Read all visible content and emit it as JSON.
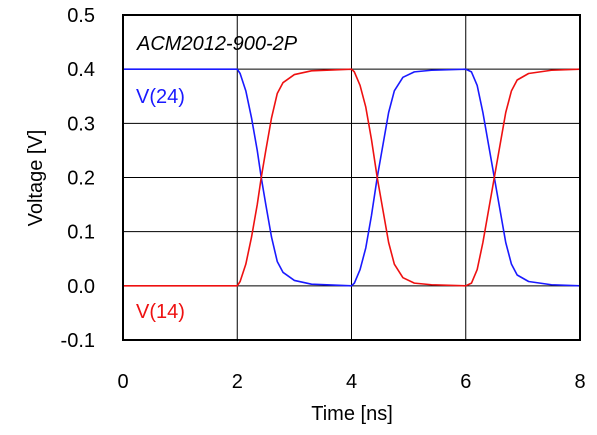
{
  "chart_data": {
    "type": "line",
    "title": "ACM2012-900-2P",
    "xlabel": "Time [ns]",
    "ylabel": "Voltage [V]",
    "xlim": [
      0,
      8
    ],
    "ylim": [
      -0.1,
      0.5
    ],
    "x_ticks": [
      "0",
      "2",
      "4",
      "6",
      "8"
    ],
    "y_ticks": [
      "-0.1",
      "0.0",
      "0.1",
      "0.2",
      "0.3",
      "0.4",
      "0.5"
    ],
    "grid": true,
    "series": [
      {
        "name": "V(24)",
        "color": "#1a1aff",
        "x": [
          0,
          2.0,
          2.05,
          2.15,
          2.25,
          2.35,
          2.42,
          2.5,
          2.6,
          2.7,
          2.8,
          3.0,
          3.3,
          4.0,
          4.05,
          4.15,
          4.25,
          4.35,
          4.45,
          4.55,
          4.65,
          4.75,
          4.9,
          5.1,
          5.4,
          6.0,
          6.1,
          6.2,
          6.3,
          6.4,
          6.5,
          6.6,
          6.7,
          6.8,
          6.9,
          7.1,
          7.5,
          8.0
        ],
        "y": [
          0.4,
          0.4,
          0.392,
          0.36,
          0.31,
          0.25,
          0.2,
          0.15,
          0.09,
          0.045,
          0.025,
          0.01,
          0.003,
          0.0,
          0.005,
          0.03,
          0.07,
          0.13,
          0.2,
          0.26,
          0.32,
          0.36,
          0.385,
          0.395,
          0.398,
          0.4,
          0.395,
          0.37,
          0.32,
          0.26,
          0.2,
          0.14,
          0.08,
          0.04,
          0.02,
          0.008,
          0.002,
          0.0
        ]
      },
      {
        "name": "V(14)",
        "color": "#ee1111",
        "x": [
          0,
          2.0,
          2.05,
          2.15,
          2.25,
          2.35,
          2.42,
          2.5,
          2.6,
          2.7,
          2.8,
          3.0,
          3.3,
          4.0,
          4.05,
          4.15,
          4.25,
          4.35,
          4.45,
          4.55,
          4.65,
          4.75,
          4.9,
          5.1,
          5.4,
          6.0,
          6.1,
          6.2,
          6.3,
          6.4,
          6.5,
          6.6,
          6.7,
          6.8,
          6.9,
          7.1,
          7.5,
          8.0
        ],
        "y": [
          0.0,
          0.0,
          0.008,
          0.04,
          0.09,
          0.15,
          0.2,
          0.25,
          0.31,
          0.355,
          0.375,
          0.39,
          0.397,
          0.4,
          0.395,
          0.37,
          0.33,
          0.27,
          0.2,
          0.14,
          0.08,
          0.04,
          0.015,
          0.005,
          0.002,
          0.0,
          0.005,
          0.03,
          0.08,
          0.14,
          0.2,
          0.26,
          0.32,
          0.36,
          0.38,
          0.392,
          0.398,
          0.4
        ]
      }
    ]
  }
}
